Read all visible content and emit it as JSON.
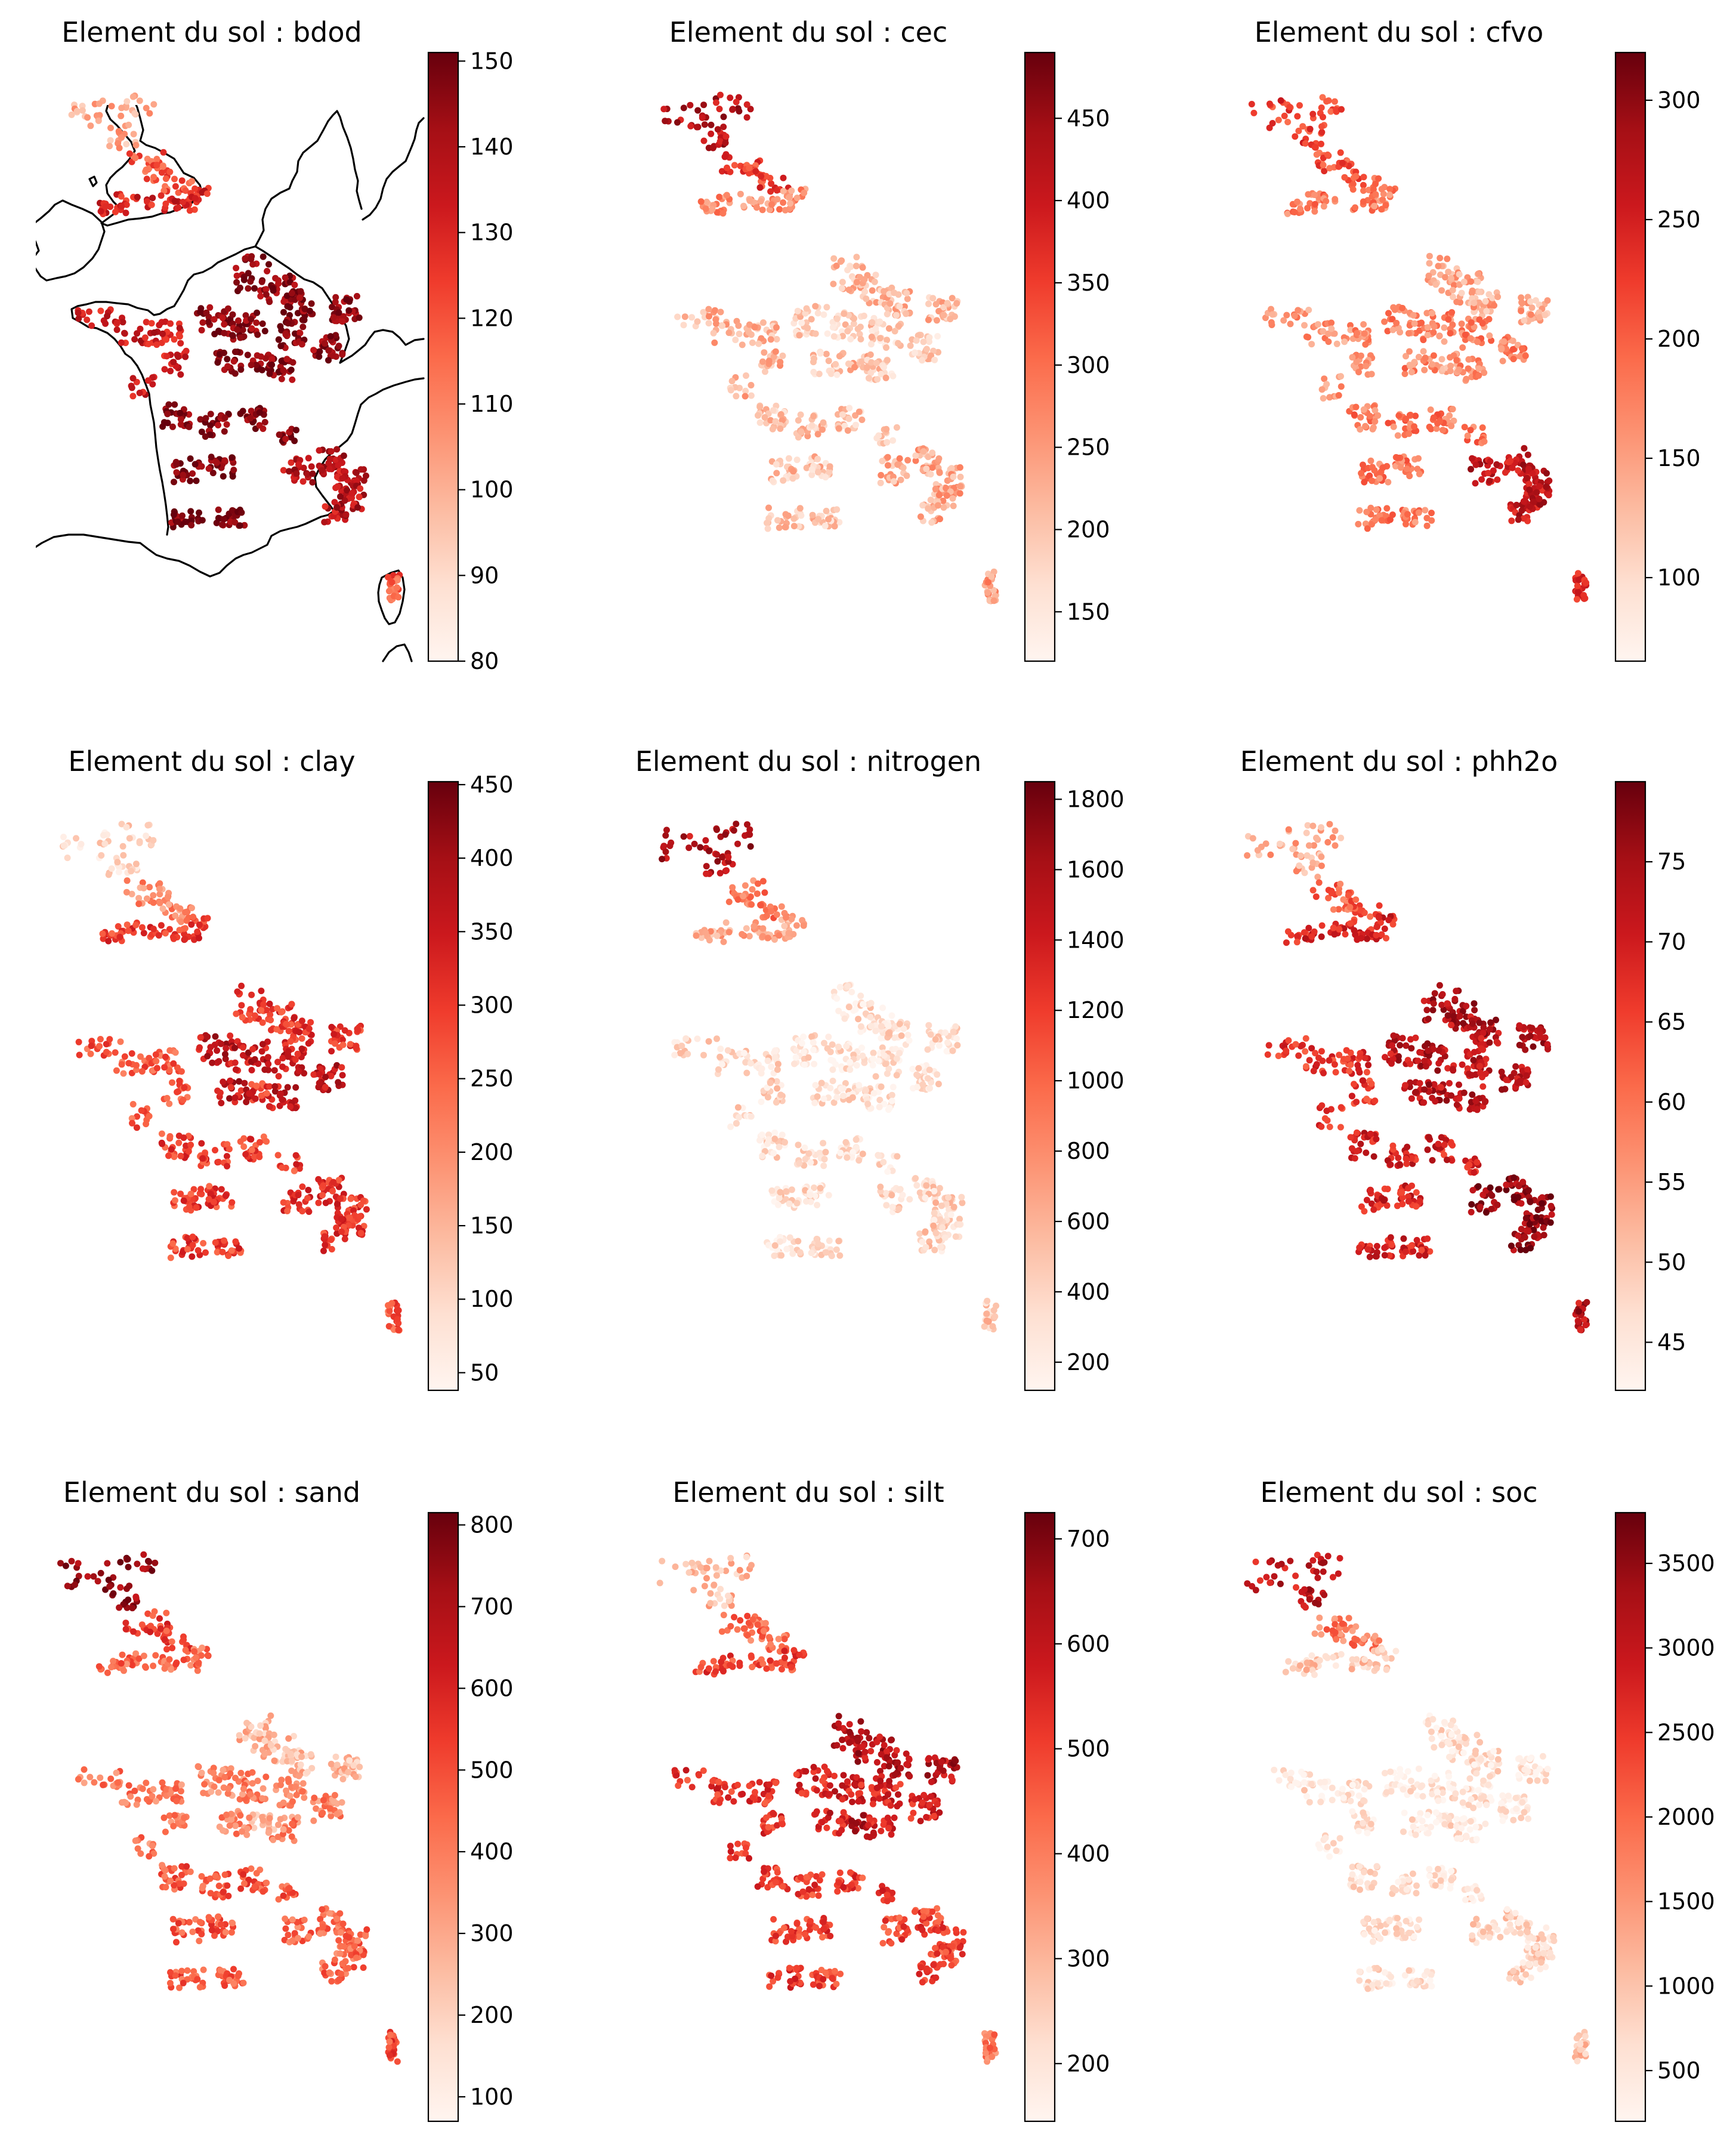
{
  "colormap": {
    "name": "Reds",
    "stops": [
      "#fff5f0",
      "#fee0d2",
      "#fcbba1",
      "#fc9272",
      "#fb6a4a",
      "#ef3b2c",
      "#cb181d",
      "#a50f15",
      "#67000d"
    ]
  },
  "chart_data": [
    {
      "type": "scatter-map",
      "title": "Element du sol : bdod",
      "variable": "bdod",
      "colorbar": {
        "min": 80,
        "max": 151,
        "ticks": [
          80,
          90,
          100,
          110,
          120,
          130,
          140,
          150
        ]
      },
      "regions": {
        "uk_north": 0.3,
        "uk_mid": 0.55,
        "uk_south": 0.72,
        "fr_north": 0.92,
        "fr_center": 0.93,
        "fr_west": 0.75,
        "fr_southwest": 0.95,
        "fr_southeast": 0.8,
        "corsica": 0.55
      }
    },
    {
      "type": "scatter-map",
      "title": "Element du sol : cec",
      "variable": "cec",
      "colorbar": {
        "min": 120,
        "max": 490,
        "ticks": [
          150,
          200,
          250,
          300,
          350,
          400,
          450
        ]
      },
      "regions": {
        "uk_north": 0.82,
        "uk_mid": 0.62,
        "uk_south": 0.4,
        "fr_north": 0.25,
        "fr_center": 0.18,
        "fr_west": 0.28,
        "fr_southwest": 0.22,
        "fr_southeast": 0.3,
        "corsica": 0.35
      }
    },
    {
      "type": "scatter-map",
      "title": "Element du sol : cfvo",
      "variable": "cfvo",
      "colorbar": {
        "min": 65,
        "max": 320,
        "ticks": [
          100,
          150,
          200,
          250,
          300
        ]
      },
      "regions": {
        "uk_north": 0.62,
        "uk_mid": 0.55,
        "uk_south": 0.45,
        "fr_north": 0.3,
        "fr_center": 0.42,
        "fr_west": 0.38,
        "fr_southwest": 0.45,
        "fr_southeast": 0.78,
        "corsica": 0.72
      }
    },
    {
      "type": "scatter-map",
      "title": "Element du sol : clay",
      "variable": "clay",
      "colorbar": {
        "min": 38,
        "max": 452,
        "ticks": [
          50,
          100,
          150,
          200,
          250,
          300,
          350,
          400,
          450
        ]
      },
      "regions": {
        "uk_north": 0.15,
        "uk_mid": 0.4,
        "uk_south": 0.62,
        "fr_north": 0.65,
        "fr_center": 0.78,
        "fr_west": 0.55,
        "fr_southwest": 0.62,
        "fr_southeast": 0.65,
        "corsica": 0.55
      }
    },
    {
      "type": "scatter-map",
      "title": "Element du sol : nitrogen",
      "variable": "nitrogen",
      "colorbar": {
        "min": 120,
        "max": 1850,
        "ticks": [
          200,
          400,
          600,
          800,
          1000,
          1200,
          1400,
          1600,
          1800
        ]
      },
      "regions": {
        "uk_north": 0.82,
        "uk_mid": 0.45,
        "uk_south": 0.3,
        "fr_north": 0.12,
        "fr_center": 0.1,
        "fr_west": 0.14,
        "fr_southwest": 0.12,
        "fr_southeast": 0.16,
        "corsica": 0.2
      }
    },
    {
      "type": "scatter-map",
      "title": "Element du sol : phh2o",
      "variable": "phh2o",
      "colorbar": {
        "min": 42,
        "max": 80,
        "ticks": [
          45,
          50,
          55,
          60,
          65,
          70,
          75
        ]
      },
      "regions": {
        "uk_north": 0.3,
        "uk_mid": 0.52,
        "uk_south": 0.7,
        "fr_north": 0.82,
        "fr_center": 0.8,
        "fr_west": 0.65,
        "fr_southwest": 0.72,
        "fr_southeast": 0.9,
        "corsica": 0.82
      }
    },
    {
      "type": "scatter-map",
      "title": "Element du sol : sand",
      "variable": "sand",
      "colorbar": {
        "min": 70,
        "max": 815,
        "ticks": [
          100,
          200,
          300,
          400,
          500,
          600,
          700,
          800
        ]
      },
      "regions": {
        "uk_north": 0.9,
        "uk_mid": 0.62,
        "uk_south": 0.5,
        "fr_north": 0.25,
        "fr_center": 0.42,
        "fr_west": 0.45,
        "fr_southwest": 0.55,
        "fr_southeast": 0.5,
        "corsica": 0.6
      }
    },
    {
      "type": "scatter-map",
      "title": "Element du sol : silt",
      "variable": "silt",
      "colorbar": {
        "min": 145,
        "max": 725,
        "ticks": [
          200,
          300,
          400,
          500,
          600,
          700
        ]
      },
      "regions": {
        "uk_north": 0.25,
        "uk_mid": 0.5,
        "uk_south": 0.6,
        "fr_north": 0.82,
        "fr_center": 0.72,
        "fr_west": 0.65,
        "fr_southwest": 0.62,
        "fr_southeast": 0.6,
        "corsica": 0.45
      }
    },
    {
      "type": "scatter-map",
      "title": "Element du sol : soc",
      "variable": "soc",
      "colorbar": {
        "min": 200,
        "max": 3800,
        "ticks": [
          500,
          1000,
          1500,
          2000,
          2500,
          3000,
          3500
        ]
      },
      "regions": {
        "uk_north": 0.78,
        "uk_mid": 0.45,
        "uk_south": 0.2,
        "fr_north": 0.1,
        "fr_center": 0.08,
        "fr_west": 0.1,
        "fr_southwest": 0.1,
        "fr_southeast": 0.15,
        "corsica": 0.25
      }
    }
  ]
}
